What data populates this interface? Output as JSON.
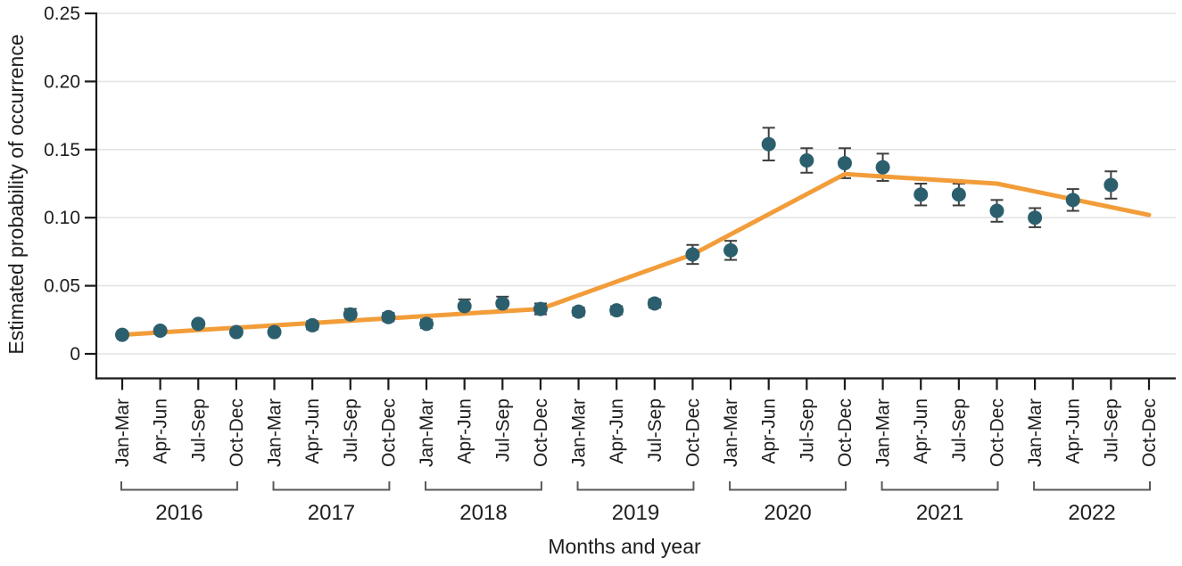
{
  "figure": {
    "background": "#ffffff",
    "colors": {
      "point": "#2c5f6e",
      "trend_line": "#f29d3a",
      "error_bar": "#3f3f3f",
      "grid": "#e4e4e4",
      "axis": "#1a1a1a",
      "bracket": "#5a5a5a",
      "text": "#1e1e1e"
    }
  },
  "chart_data": {
    "type": "scatter",
    "title": "",
    "xlabel": "Months and year",
    "ylabel": "Estimated probability of occurrence",
    "ylim": [
      0,
      0.25
    ],
    "grid": "horizontal",
    "legend": "none",
    "yticks": [
      {
        "value": 0.0,
        "label": "0"
      },
      {
        "value": 0.05,
        "label": "0.05"
      },
      {
        "value": 0.1,
        "label": "0.10"
      },
      {
        "value": 0.15,
        "label": "0.15"
      },
      {
        "value": 0.2,
        "label": "0.20"
      },
      {
        "value": 0.25,
        "label": "0.25"
      }
    ],
    "quarter_labels": [
      "Jan-Mar",
      "Apr-Jun",
      "Jul-Sep",
      "Oct-Dec"
    ],
    "years": [
      "2016",
      "2017",
      "2018",
      "2019",
      "2020",
      "2021",
      "2022"
    ],
    "num_quarters": 28,
    "points": [
      {
        "year": "2016",
        "quarter": "Jan-Mar",
        "value": 0.014,
        "ci": 0.002
      },
      {
        "year": "2016",
        "quarter": "Apr-Jun",
        "value": 0.017,
        "ci": 0.002
      },
      {
        "year": "2016",
        "quarter": "Jul-Sep",
        "value": 0.022,
        "ci": 0.002
      },
      {
        "year": "2016",
        "quarter": "Oct-Dec",
        "value": 0.016,
        "ci": 0.002
      },
      {
        "year": "2017",
        "quarter": "Jan-Mar",
        "value": 0.016,
        "ci": 0.002
      },
      {
        "year": "2017",
        "quarter": "Apr-Jun",
        "value": 0.021,
        "ci": 0.003
      },
      {
        "year": "2017",
        "quarter": "Jul-Sep",
        "value": 0.029,
        "ci": 0.004
      },
      {
        "year": "2017",
        "quarter": "Oct-Dec",
        "value": 0.027,
        "ci": 0.003
      },
      {
        "year": "2018",
        "quarter": "Jan-Mar",
        "value": 0.022,
        "ci": 0.003
      },
      {
        "year": "2018",
        "quarter": "Apr-Jun",
        "value": 0.035,
        "ci": 0.005
      },
      {
        "year": "2018",
        "quarter": "Jul-Sep",
        "value": 0.037,
        "ci": 0.005
      },
      {
        "year": "2018",
        "quarter": "Oct-Dec",
        "value": 0.033,
        "ci": 0.004
      },
      {
        "year": "2019",
        "quarter": "Jan-Mar",
        "value": 0.031,
        "ci": 0.003
      },
      {
        "year": "2019",
        "quarter": "Apr-Jun",
        "value": 0.032,
        "ci": 0.003
      },
      {
        "year": "2019",
        "quarter": "Jul-Sep",
        "value": 0.037,
        "ci": 0.003
      },
      {
        "year": "2019",
        "quarter": "Oct-Dec",
        "value": 0.073,
        "ci": 0.007
      },
      {
        "year": "2020",
        "quarter": "Jan-Mar",
        "value": 0.076,
        "ci": 0.007
      },
      {
        "year": "2020",
        "quarter": "Apr-Jun",
        "value": 0.154,
        "ci": 0.012
      },
      {
        "year": "2020",
        "quarter": "Jul-Sep",
        "value": 0.142,
        "ci": 0.009
      },
      {
        "year": "2020",
        "quarter": "Oct-Dec",
        "value": 0.14,
        "ci": 0.011
      },
      {
        "year": "2021",
        "quarter": "Jan-Mar",
        "value": 0.137,
        "ci": 0.01
      },
      {
        "year": "2021",
        "quarter": "Apr-Jun",
        "value": 0.117,
        "ci": 0.008
      },
      {
        "year": "2021",
        "quarter": "Jul-Sep",
        "value": 0.117,
        "ci": 0.008
      },
      {
        "year": "2021",
        "quarter": "Oct-Dec",
        "value": 0.105,
        "ci": 0.008
      },
      {
        "year": "2022",
        "quarter": "Jan-Mar",
        "value": 0.1,
        "ci": 0.007
      },
      {
        "year": "2022",
        "quarter": "Apr-Jun",
        "value": 0.113,
        "ci": 0.008
      },
      {
        "year": "2022",
        "quarter": "Jul-Sep",
        "value": 0.124,
        "ci": 0.01
      }
    ],
    "trend": {
      "name": "fitted-trend-line",
      "breakpoints": [
        {
          "index": 0,
          "value": 0.014
        },
        {
          "index": 11,
          "value": 0.033
        },
        {
          "index": 15,
          "value": 0.073
        },
        {
          "index": 19,
          "value": 0.132
        },
        {
          "index": 23,
          "value": 0.125
        },
        {
          "index": 27,
          "value": 0.102
        }
      ]
    }
  }
}
